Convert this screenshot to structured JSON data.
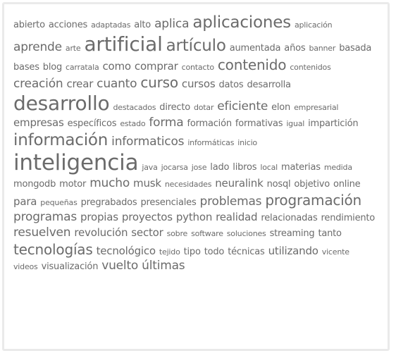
{
  "text_color": "#6b6b6b",
  "border_color": "#eaeaea",
  "tags": [
    {
      "label": "abierto",
      "size": 1
    },
    {
      "label": "acciones",
      "size": 1
    },
    {
      "label": "adaptadas",
      "size": 0
    },
    {
      "label": "alto",
      "size": 1
    },
    {
      "label": "aplica",
      "size": 3
    },
    {
      "label": "aplicaciones",
      "size": 5
    },
    {
      "label": "aplicación",
      "size": 0
    },
    {
      "label": "aprende",
      "size": 3
    },
    {
      "label": "arte",
      "size": 0
    },
    {
      "label": "artificial",
      "size": 6
    },
    {
      "label": "artículo",
      "size": 5
    },
    {
      "label": "aumentada",
      "size": 1
    },
    {
      "label": "años",
      "size": 1
    },
    {
      "label": "banner",
      "size": 0
    },
    {
      "label": "basada",
      "size": 1
    },
    {
      "label": "bases",
      "size": 1
    },
    {
      "label": "blog",
      "size": 1
    },
    {
      "label": "carratala",
      "size": 0
    },
    {
      "label": "como",
      "size": 2
    },
    {
      "label": "comprar",
      "size": 2
    },
    {
      "label": "contacto",
      "size": 0
    },
    {
      "label": "contenido",
      "size": 4
    },
    {
      "label": "contenidos",
      "size": 0
    },
    {
      "label": "creación",
      "size": 3
    },
    {
      "label": "crear",
      "size": 2
    },
    {
      "label": "cuanto",
      "size": 3
    },
    {
      "label": "curso",
      "size": 4
    },
    {
      "label": "cursos",
      "size": 2
    },
    {
      "label": "datos",
      "size": 1
    },
    {
      "label": "desarrolla",
      "size": 1
    },
    {
      "label": "desarrollo",
      "size": 6
    },
    {
      "label": "destacados",
      "size": 0
    },
    {
      "label": "directo",
      "size": 1
    },
    {
      "label": "dotar",
      "size": 0
    },
    {
      "label": "eficiente",
      "size": 3
    },
    {
      "label": "elon",
      "size": 1
    },
    {
      "label": "empresarial",
      "size": 0
    },
    {
      "label": "empresas",
      "size": 2
    },
    {
      "label": "específicos",
      "size": 1
    },
    {
      "label": "estado",
      "size": 0
    },
    {
      "label": "forma",
      "size": 3
    },
    {
      "label": "formación",
      "size": 1
    },
    {
      "label": "formativas",
      "size": 1
    },
    {
      "label": "igual",
      "size": 0
    },
    {
      "label": "impartición",
      "size": 1
    },
    {
      "label": "información",
      "size": 5
    },
    {
      "label": "informaticos",
      "size": 3
    },
    {
      "label": "informáticas",
      "size": 0
    },
    {
      "label": "inicio",
      "size": 0
    },
    {
      "label": "inteligencia",
      "size": 7
    },
    {
      "label": "java",
      "size": 0
    },
    {
      "label": "jocarsa",
      "size": 0
    },
    {
      "label": "jose",
      "size": 0
    },
    {
      "label": "lado",
      "size": 1
    },
    {
      "label": "libros",
      "size": 1
    },
    {
      "label": "local",
      "size": 0
    },
    {
      "label": "materias",
      "size": 1
    },
    {
      "label": "medida",
      "size": 0
    },
    {
      "label": "mongodb",
      "size": 1
    },
    {
      "label": "motor",
      "size": 1
    },
    {
      "label": "mucho",
      "size": 3
    },
    {
      "label": "musk",
      "size": 2
    },
    {
      "label": "necesidades",
      "size": 0
    },
    {
      "label": "neuralink",
      "size": 2
    },
    {
      "label": "nosql",
      "size": 1
    },
    {
      "label": "objetivo",
      "size": 1
    },
    {
      "label": "online",
      "size": 1
    },
    {
      "label": "para",
      "size": 2
    },
    {
      "label": "pequeñas",
      "size": 0
    },
    {
      "label": "pregrabados",
      "size": 1
    },
    {
      "label": "presenciales",
      "size": 1
    },
    {
      "label": "problemas",
      "size": 3
    },
    {
      "label": "programación",
      "size": 4
    },
    {
      "label": "programas",
      "size": 3
    },
    {
      "label": "propias",
      "size": 2
    },
    {
      "label": "proyectos",
      "size": 2
    },
    {
      "label": "python",
      "size": 2
    },
    {
      "label": "realidad",
      "size": 2
    },
    {
      "label": "relacionadas",
      "size": 1
    },
    {
      "label": "rendimiento",
      "size": 1
    },
    {
      "label": "resuelven",
      "size": 3
    },
    {
      "label": "revolución",
      "size": 2
    },
    {
      "label": "sector",
      "size": 2
    },
    {
      "label": "sobre",
      "size": 0
    },
    {
      "label": "software",
      "size": 0
    },
    {
      "label": "soluciones",
      "size": 0
    },
    {
      "label": "streaming",
      "size": 1
    },
    {
      "label": "tanto",
      "size": 1
    },
    {
      "label": "tecnologías",
      "size": 4
    },
    {
      "label": "tecnológico",
      "size": 2
    },
    {
      "label": "tejido",
      "size": 0
    },
    {
      "label": "tipo",
      "size": 1
    },
    {
      "label": "todo",
      "size": 1
    },
    {
      "label": "técnicas",
      "size": 1
    },
    {
      "label": "utilizando",
      "size": 2
    },
    {
      "label": "vicente",
      "size": 0
    },
    {
      "label": "videos",
      "size": 0
    },
    {
      "label": "visualización",
      "size": 1
    },
    {
      "label": "vuelto",
      "size": 3
    },
    {
      "label": "últimas",
      "size": 3
    }
  ]
}
